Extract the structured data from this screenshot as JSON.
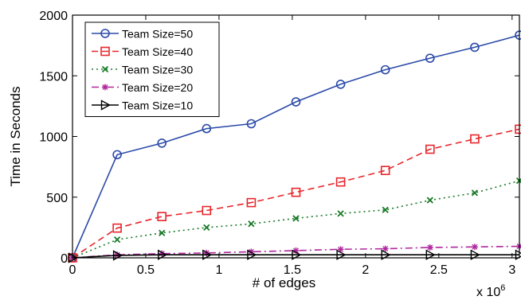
{
  "chart_data": {
    "type": "line",
    "title": "",
    "xlabel": "# of edges",
    "ylabel": "Time in Seconds",
    "x_multiplier_label": "x 10",
    "x_multiplier_exponent": "6",
    "xlim": [
      0,
      3.05
    ],
    "ylim": [
      0,
      2000
    ],
    "xticks": [
      0,
      0.5,
      1,
      1.5,
      2,
      2.5,
      3
    ],
    "xtick_labels": [
      "0",
      "0.5",
      "1",
      "1.5",
      "2",
      "2.5",
      "3"
    ],
    "yticks": [
      0,
      500,
      1000,
      1500,
      2000
    ],
    "ytick_labels": [
      "0",
      "500",
      "1000",
      "1500",
      "2000"
    ],
    "grid": false,
    "legend_position": "top-left",
    "x": [
      0,
      0.305,
      0.61,
      0.915,
      1.22,
      1.525,
      1.83,
      2.135,
      2.44,
      2.745,
      3.05
    ],
    "series": [
      {
        "name": "Team Size=50",
        "color": "#2b4aa8",
        "marker": "circle",
        "line": "solid",
        "values": [
          0,
          850,
          945,
          1065,
          1105,
          1285,
          1430,
          1550,
          1645,
          1735,
          1835
        ]
      },
      {
        "name": "Team Size=40",
        "color": "#e8262b",
        "marker": "square",
        "line": "dashed",
        "values": [
          0,
          245,
          340,
          390,
          455,
          540,
          625,
          720,
          895,
          980,
          1060
        ]
      },
      {
        "name": "Team Size=30",
        "color": "#1a7a28",
        "marker": "x",
        "line": "dotted",
        "values": [
          0,
          150,
          205,
          250,
          280,
          325,
          365,
          395,
          475,
          535,
          635
        ]
      },
      {
        "name": "Team Size=20",
        "color": "#b0289e",
        "marker": "star",
        "line": "dashdot",
        "values": [
          0,
          25,
          35,
          40,
          50,
          60,
          70,
          75,
          85,
          90,
          95
        ]
      },
      {
        "name": "Team Size=10",
        "color": "#000000",
        "marker": "triangle-right",
        "line": "solid",
        "values": [
          0,
          20,
          25,
          25,
          25,
          25,
          25,
          25,
          25,
          25,
          25
        ]
      }
    ]
  }
}
